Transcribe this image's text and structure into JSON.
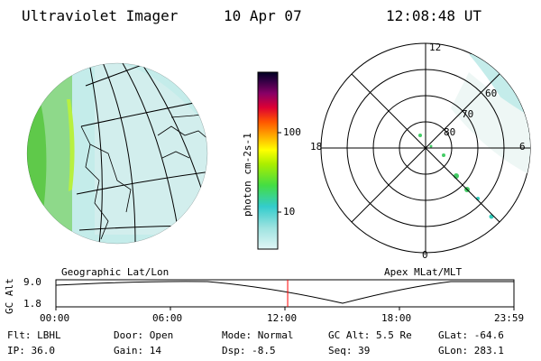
{
  "header": {
    "instrument": "Ultraviolet Imager",
    "date": "10 Apr 07",
    "time": "12:08:48 UT"
  },
  "geo_panel": {
    "caption": "Geographic Lat/Lon"
  },
  "polar_panel": {
    "caption": "Apex MLat/MLT",
    "mlt_labels": [
      "12",
      "18",
      "6",
      "0"
    ],
    "mlat_labels": [
      "60",
      "70",
      "80"
    ]
  },
  "colorbar": {
    "unit_label": "photon cm-2s-1",
    "ticks": [
      "100",
      "10"
    ],
    "scale": "log"
  },
  "altitude_strip": {
    "ylabel": "GC Alt",
    "yticks": [
      "9.0",
      "1.8"
    ],
    "time_ticks": [
      "00:00",
      "06:00",
      "12:00",
      "18:00",
      "23:59"
    ],
    "current_time_fraction": 0.506,
    "marker_color": "#ff0000"
  },
  "info": {
    "filter": "Flt: LBHL",
    "ip": "IP: 36.0",
    "door": "Door: Open",
    "gain": "Gain: 14",
    "mode": "Mode: Normal",
    "dsp": "Dsp:    -8.5",
    "gc_alt": "GC Alt: 5.5 Re",
    "seq": "Seq: 39",
    "glat": "GLat:  -64.6",
    "glon": "GLon:  283.1"
  }
}
